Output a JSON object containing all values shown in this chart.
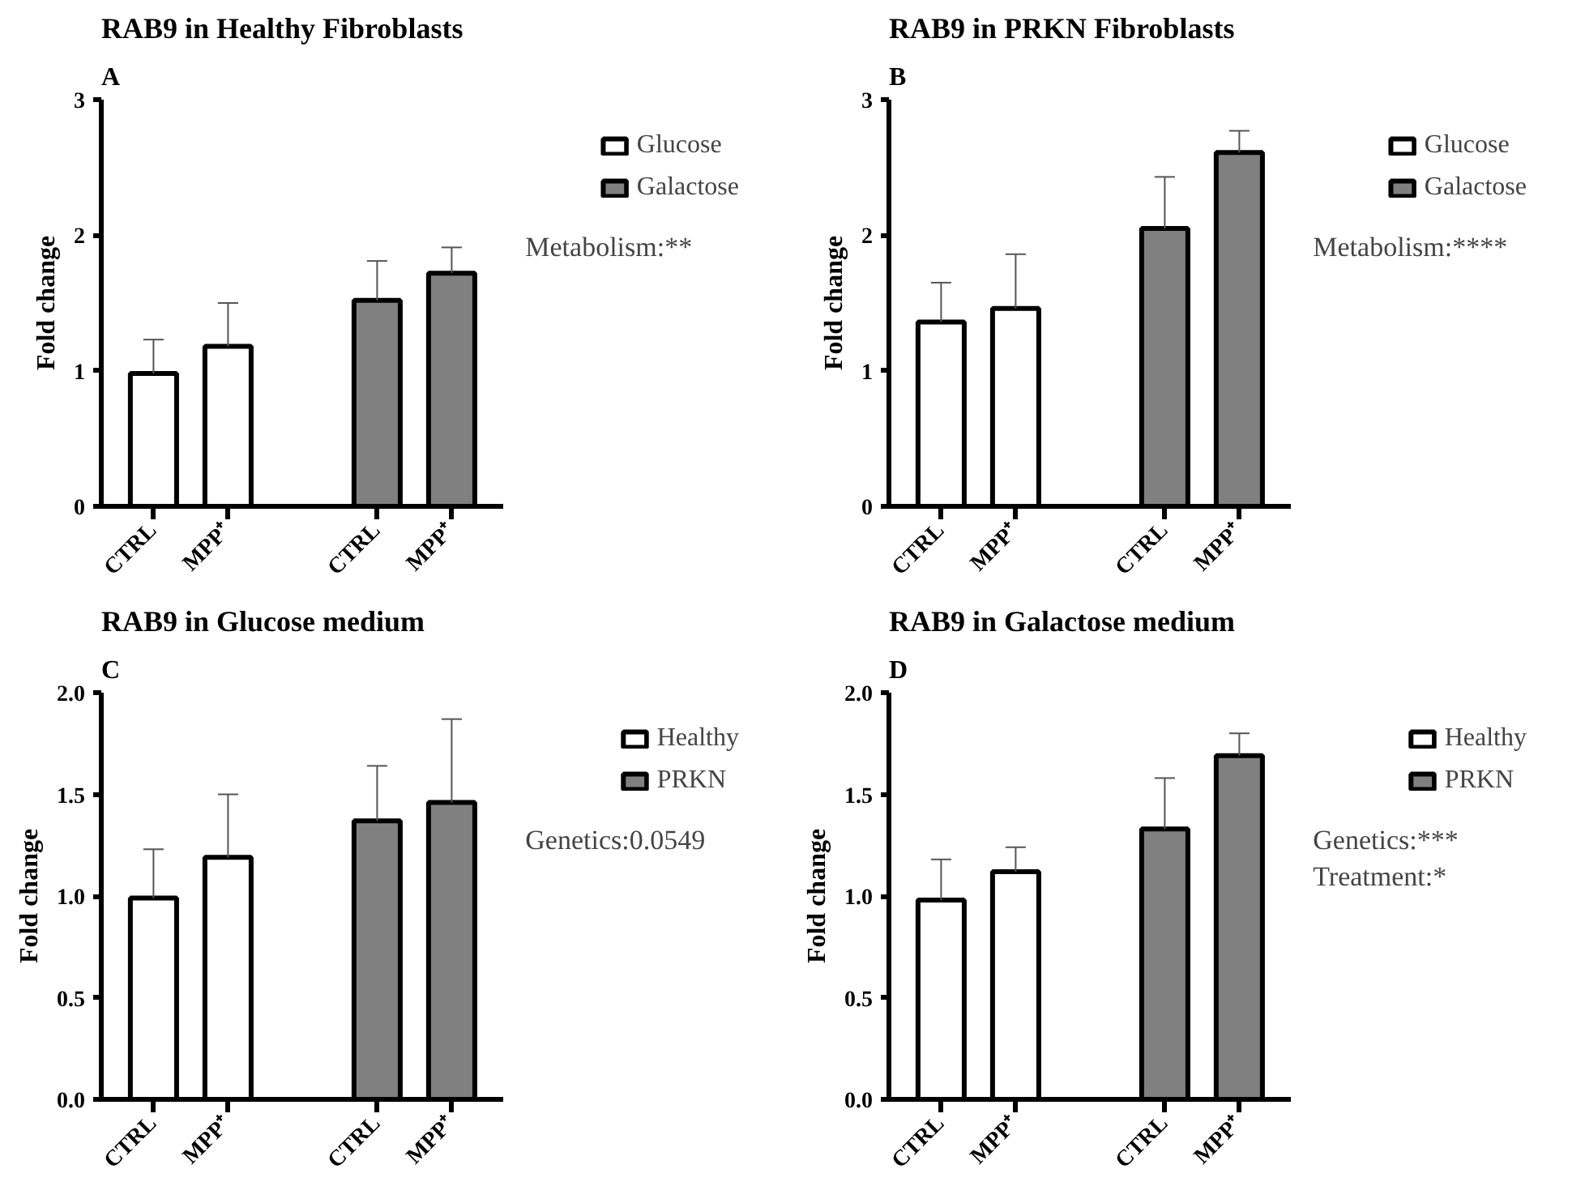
{
  "chart_data": [
    {
      "type": "bar",
      "title": "RAB9 in Healthy Fibroblasts",
      "ylabel": "Fold change",
      "categories": [
        "CTRL",
        "MPP⁺",
        null,
        "CTRL",
        "MPP⁺"
      ],
      "series": [
        {
          "name": "Glucose",
          "color": "#ffffff",
          "values": [
            0.98,
            1.18,
            null,
            null,
            null
          ],
          "errors": [
            [
              0.98,
              1.23
            ],
            [
              1.18,
              1.5
            ],
            null,
            null,
            null
          ]
        },
        {
          "name": "Galactose",
          "color": "#808080",
          "values": [
            null,
            null,
            null,
            1.52,
            1.72
          ],
          "errors": [
            null,
            null,
            null,
            [
              1.52,
              1.81
            ],
            [
              1.72,
              1.91
            ]
          ]
        }
      ],
      "ylim": [
        0,
        3
      ],
      "yticks": [
        0,
        1,
        2,
        3
      ],
      "legend": "right",
      "annotations": [
        "A",
        "Metabolism:**"
      ]
    },
    {
      "type": "bar",
      "title": "RAB9 in PRKN Fibroblasts",
      "ylabel": "Fold change",
      "categories": [
        "CTRL",
        "MPP⁺",
        null,
        "CTRL",
        "MPP⁺"
      ],
      "series": [
        {
          "name": "Glucose",
          "color": "#ffffff",
          "values": [
            1.36,
            1.46,
            null,
            null,
            null
          ],
          "errors": [
            [
              1.36,
              1.65
            ],
            [
              1.46,
              1.86
            ],
            null,
            null,
            null
          ]
        },
        {
          "name": "Galactose",
          "color": "#808080",
          "values": [
            null,
            null,
            null,
            2.05,
            2.61
          ],
          "errors": [
            null,
            null,
            null,
            [
              2.05,
              2.43
            ],
            [
              2.61,
              2.77
            ]
          ]
        }
      ],
      "ylim": [
        0,
        3
      ],
      "yticks": [
        0,
        1,
        2,
        3
      ],
      "legend": "right",
      "annotations": [
        "B",
        "Metabolism:****"
      ]
    },
    {
      "type": "bar",
      "title": "RAB9 in Glucose medium",
      "ylabel": "Fold change",
      "categories": [
        "CTRL",
        "MPP⁺",
        null,
        "CTRL",
        "MPP⁺"
      ],
      "series": [
        {
          "name": "Healthy",
          "color": "#ffffff",
          "values": [
            0.99,
            1.19,
            null,
            null,
            null
          ],
          "errors": [
            [
              0.99,
              1.23
            ],
            [
              1.19,
              1.5
            ],
            null,
            null,
            null
          ]
        },
        {
          "name": "PRKN",
          "color": "#808080",
          "values": [
            null,
            null,
            null,
            1.37,
            1.46
          ],
          "errors": [
            null,
            null,
            null,
            [
              1.37,
              1.64
            ],
            [
              1.46,
              1.87
            ]
          ]
        }
      ],
      "ylim": [
        0,
        2
      ],
      "yticks": [
        {
          "value": 0,
          "label": "0.0"
        },
        {
          "value": 0.5,
          "label": "0.5"
        },
        {
          "value": 1,
          "label": "1.0"
        },
        {
          "value": 1.5,
          "label": "1.5"
        },
        {
          "value": 2,
          "label": "2.0"
        }
      ],
      "legend": "right",
      "annotations": [
        "C",
        "Genetics:0.0549"
      ]
    },
    {
      "type": "bar",
      "title": "RAB9 in Galactose medium",
      "ylabel": "Fold change",
      "categories": [
        "CTRL",
        "MPP⁺",
        null,
        "CTRL",
        "MPP⁺"
      ],
      "series": [
        {
          "name": "Healthy",
          "color": "#ffffff",
          "values": [
            0.98,
            1.12,
            null,
            null,
            null
          ],
          "errors": [
            [
              0.98,
              1.18
            ],
            [
              1.12,
              1.24
            ],
            null,
            null,
            null
          ]
        },
        {
          "name": "PRKN",
          "color": "#808080",
          "values": [
            null,
            null,
            null,
            1.33,
            1.69
          ],
          "errors": [
            null,
            null,
            null,
            [
              1.33,
              1.58
            ],
            [
              1.69,
              1.8
            ]
          ]
        }
      ],
      "ylim": [
        0,
        2
      ],
      "yticks": [
        {
          "value": 0,
          "label": "0.0"
        },
        {
          "value": 0.5,
          "label": "0.5"
        },
        {
          "value": 1,
          "label": "1.0"
        },
        {
          "value": 1.5,
          "label": "1.5"
        },
        {
          "value": 2,
          "label": "2.0"
        }
      ],
      "legend": "right",
      "annotations": [
        "D",
        "Genetics:***",
        "Treatment:*"
      ]
    }
  ]
}
